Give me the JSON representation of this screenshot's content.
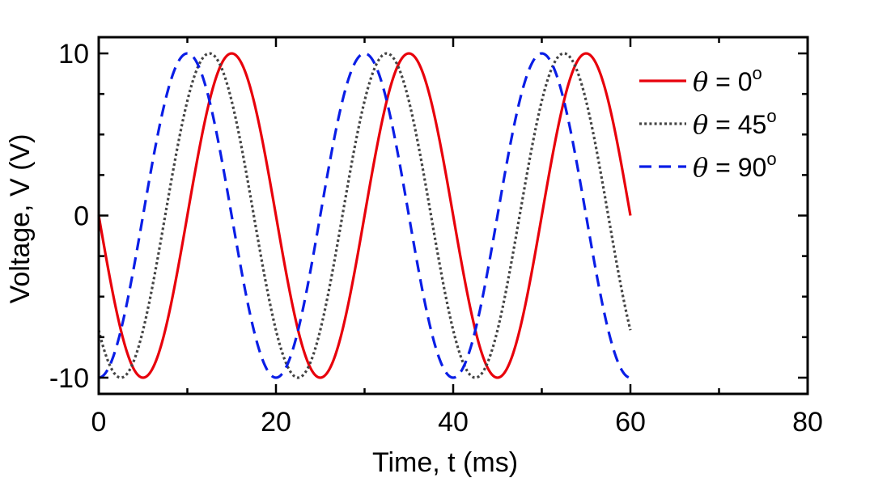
{
  "chart_data": {
    "type": "line",
    "title": "",
    "xlabel": "Time, t (ms)",
    "ylabel": "Voltage, V (V)",
    "xlim": [
      0,
      80
    ],
    "ylim": [
      -11,
      11
    ],
    "x_ticks": [
      0,
      20,
      40,
      60,
      80
    ],
    "x_tick_labels": [
      "0",
      "20",
      "40",
      "60",
      "80"
    ],
    "y_ticks": [
      -10,
      0,
      10
    ],
    "y_tick_labels": [
      "-10",
      "0",
      "10"
    ],
    "y_minor_step": 5,
    "x_minor_step": 10,
    "grid": false,
    "legend_position": "top-right",
    "series": [
      {
        "name": "θ = 0°",
        "theta_symbol": "θ",
        "label_rest": " = 0",
        "label_sup": "o",
        "amplitude": 10,
        "period_ms": 20,
        "phase_deg": 0,
        "x_range": [
          0,
          60
        ],
        "color": "#e8000b",
        "style": "solid"
      },
      {
        "name": "θ = 45°",
        "theta_symbol": "θ",
        "label_rest": " = 45",
        "label_sup": "o",
        "amplitude": 10,
        "period_ms": 20,
        "phase_deg": 45,
        "x_range": [
          0,
          60
        ],
        "color": "#444444",
        "style": "dotted"
      },
      {
        "name": "θ = 90°",
        "theta_symbol": "θ",
        "label_rest": " = 90",
        "label_sup": "o",
        "amplitude": 10,
        "period_ms": 20,
        "phase_deg": 90,
        "x_range": [
          0,
          60
        ],
        "color": "#0a1ee6",
        "style": "dashed"
      }
    ]
  }
}
